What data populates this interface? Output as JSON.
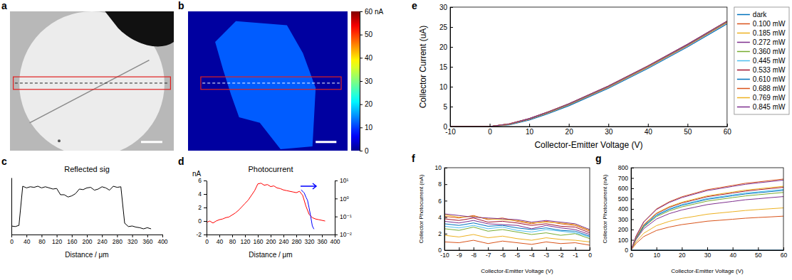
{
  "chart_data": [
    {
      "type": "image",
      "panel_label": "a"
    },
    {
      "type": "image",
      "panel_label": "b",
      "colorbar": {
        "lim": [
          0,
          60
        ],
        "ticks": [
          0,
          10,
          20,
          30,
          40,
          50,
          {
            "value": 60,
            "label": "60 nA"
          }
        ]
      },
      "background_value": 1,
      "flake_value": 12
    },
    {
      "type": "line",
      "panel_label": "c",
      "title": "Reflected sig",
      "x_label": "Distance / μm",
      "x": [
        0,
        10,
        20,
        30,
        40,
        50,
        60,
        70,
        80,
        90,
        100,
        110,
        120,
        130,
        140,
        150,
        160,
        170,
        180,
        190,
        200,
        210,
        220,
        230,
        240,
        250,
        260,
        270,
        280,
        290,
        300,
        310,
        320,
        330,
        340,
        350,
        360,
        370
      ],
      "series": [
        {
          "color": "#000000",
          "values": [
            0.15,
            0.14,
            0.16,
            0.85,
            0.82,
            0.84,
            0.83,
            0.85,
            0.82,
            0.84,
            0.82,
            0.8,
            0.81,
            0.7,
            0.7,
            0.66,
            0.68,
            0.72,
            0.8,
            0.79,
            0.82,
            0.83,
            0.78,
            0.8,
            0.84,
            0.82,
            0.78,
            0.85,
            0.83,
            0.84,
            0.2,
            0.14,
            0.15,
            0.13,
            0.12,
            0.1,
            0.12,
            0.1
          ]
        }
      ],
      "xlim": [
        0,
        400
      ],
      "xticks": [
        0,
        40,
        80,
        120,
        160,
        200,
        240,
        280,
        320,
        360,
        400
      ],
      "ylim": [
        0,
        1
      ],
      "tick_labels": "x"
    },
    {
      "type": "line",
      "panel_label": "d",
      "title": "Photocurrent",
      "x_label": "Distance / μm",
      "y_label": "nA",
      "x": [
        0,
        10,
        20,
        30,
        40,
        50,
        60,
        70,
        80,
        90,
        100,
        110,
        120,
        130,
        140,
        150,
        160,
        170,
        180,
        190,
        200,
        210,
        220,
        230,
        240,
        250,
        260,
        270,
        280,
        290,
        300,
        310,
        320,
        330,
        340,
        350,
        360,
        370
      ],
      "series": [
        {
          "color": "#ff0000",
          "values": [
            -0.2,
            0,
            -0.3,
            0,
            0.2,
            0.3,
            0.5,
            0.6,
            0.9,
            1.2,
            1.6,
            2.1,
            2.6,
            3.1,
            3.8,
            4.5,
            5.5,
            5.6,
            5.3,
            5.4,
            5.1,
            5.2,
            4.9,
            4.8,
            4.6,
            4.5,
            4.4,
            4.3,
            4.2,
            4.4,
            3.8,
            2.2,
            1.0,
            0.5,
            0.3,
            0.2,
            0.1,
            0
          ]
        },
        {
          "color": "#0000ff",
          "axis": "y2",
          "x": [
            295,
            300,
            305,
            310,
            315,
            320,
            325,
            330,
            335
          ],
          "values": [
            3,
            2.5,
            2,
            1.2,
            0.8,
            0.3,
            0.1,
            0.03,
            0.02
          ]
        }
      ],
      "xlim": [
        0,
        400
      ],
      "xticks": [
        0,
        40,
        80,
        120,
        160,
        200,
        240,
        280,
        320,
        360,
        400
      ],
      "ylim": [
        -2,
        6
      ],
      "yticks": [
        -2,
        0,
        2,
        4,
        6
      ],
      "y2lim": [
        0.01,
        10
      ],
      "y2ticks": [
        {
          "value": 0.01,
          "label": "10⁻²"
        },
        {
          "value": 0.1,
          "label": "10⁻¹"
        },
        {
          "value": 1,
          "label": "10⁰"
        },
        {
          "value": 10,
          "label": "10¹"
        }
      ],
      "log": "y2"
    },
    {
      "type": "line",
      "panel_label": "e",
      "x_label": "Collector-Emitter Voltage (V)",
      "y_label": "Collector Current (uA)",
      "x": [
        -10,
        0,
        5,
        10,
        15,
        20,
        30,
        40,
        50,
        60
      ],
      "series": [
        {
          "name": "dark",
          "color": "#0072bd",
          "values": [
            0,
            0,
            0.4,
            1.6,
            3.3,
            5.2,
            9.6,
            14.6,
            20,
            25.8
          ]
        },
        {
          "name": "0.100 mW",
          "color": "#d95319",
          "values": [
            0,
            0,
            0.53,
            1.79,
            3.52,
            5.45,
            9.88,
            14.9,
            20.32,
            26.13
          ]
        },
        {
          "name": "0.185 mW",
          "color": "#edb120",
          "values": [
            0,
            0,
            0.56,
            1.84,
            3.58,
            5.51,
            9.95,
            14.97,
            20.39,
            26.21
          ]
        },
        {
          "name": "0.272 mW",
          "color": "#7e2f8e",
          "values": [
            0,
            0,
            0.61,
            1.9,
            3.65,
            5.59,
            10.04,
            15.07,
            20.5,
            26.32
          ]
        },
        {
          "name": "0.360 mW",
          "color": "#77ac30",
          "values": [
            0,
            0,
            0.62,
            1.92,
            3.68,
            5.62,
            10.08,
            15.11,
            20.54,
            26.36
          ]
        },
        {
          "name": "0.445 mW",
          "color": "#4dbeee",
          "values": [
            0,
            0,
            0.64,
            1.94,
            3.7,
            5.64,
            10.1,
            15.14,
            20.57,
            26.39
          ]
        },
        {
          "name": "0.533 mW",
          "color": "#a2142f",
          "values": [
            0,
            0,
            0.64,
            1.95,
            3.71,
            5.66,
            10.12,
            15.16,
            20.59,
            26.41
          ]
        },
        {
          "name": "0.610 mW",
          "color": "#0072bd",
          "values": [
            0,
            0,
            0.63,
            1.94,
            3.69,
            5.64,
            10.09,
            15.13,
            20.56,
            26.38
          ]
        },
        {
          "name": "0.688 mW",
          "color": "#d95319",
          "values": [
            0,
            0,
            0.68,
            2,
            3.77,
            5.72,
            10.19,
            15.23,
            20.66,
            26.49
          ]
        },
        {
          "name": "0.769 mW",
          "color": "#edb120",
          "values": [
            0,
            0,
            0.65,
            1.96,
            3.72,
            5.67,
            10.13,
            15.16,
            20.6,
            26.42
          ]
        },
        {
          "name": "0.845 mW",
          "color": "#7e2f8e",
          "values": [
            0,
            0,
            0.67,
            1.99,
            3.76,
            5.71,
            10.18,
            15.22,
            20.65,
            26.48
          ]
        }
      ],
      "xlim": [
        -10,
        60
      ],
      "xticks": [
        -10,
        0,
        10,
        20,
        30,
        40,
        50,
        60
      ],
      "ylim": [
        0,
        30
      ],
      "yticks": [
        0,
        5,
        10,
        15,
        20,
        25,
        30
      ],
      "legend": "right"
    },
    {
      "type": "line",
      "panel_label": "f",
      "x_label": "Collector-Emitter Voltage (V)",
      "y_label": "Collector Photocurrent (nA)",
      "x": [
        -10,
        -9,
        -8,
        -7,
        -6,
        -5,
        -4,
        -3,
        -2,
        -1,
        0
      ],
      "series": [
        {
          "color": "#d95319",
          "values": [
            1.0,
            0.9,
            1.2,
            0.8,
            1.1,
            0.9,
            0.7,
            1.0,
            0.8,
            0.9,
            0.6
          ]
        },
        {
          "color": "#edb120",
          "values": [
            1.8,
            1.6,
            1.9,
            1.5,
            1.7,
            1.4,
            1.2,
            1.5,
            1.3,
            1.2,
            1.0
          ]
        },
        {
          "color": "#7e2f8e",
          "values": [
            3.5,
            3.3,
            3.6,
            3.2,
            3.1,
            3.0,
            2.6,
            3.0,
            2.7,
            2.5,
            1.9
          ]
        },
        {
          "color": "#77ac30",
          "values": [
            2.6,
            2.4,
            2.8,
            2.3,
            2.5,
            2.2,
            1.9,
            2.1,
            1.8,
            2.0,
            1.4
          ]
        },
        {
          "color": "#4dbeee",
          "values": [
            2.9,
            2.7,
            3.0,
            2.6,
            2.8,
            2.4,
            2.2,
            2.5,
            2.3,
            2.1,
            1.6
          ]
        },
        {
          "color": "#a2142f",
          "values": [
            3.8,
            3.6,
            3.9,
            3.4,
            3.5,
            3.3,
            3.0,
            3.2,
            2.9,
            2.8,
            2.1
          ]
        },
        {
          "color": "#0072bd",
          "values": [
            3.2,
            3.0,
            3.3,
            2.9,
            3.0,
            2.7,
            2.5,
            2.7,
            2.4,
            2.3,
            1.7
          ]
        },
        {
          "color": "#d95319",
          "values": [
            4.1,
            3.9,
            4.2,
            3.7,
            3.9,
            3.5,
            3.2,
            3.5,
            3.2,
            3.0,
            2.3
          ]
        },
        {
          "color": "#edb120",
          "values": [
            4.3,
            4.0,
            4.1,
            3.8,
            3.7,
            3.6,
            3.3,
            3.4,
            3.3,
            3.1,
            2.4
          ]
        },
        {
          "color": "#7e2f8e",
          "values": [
            4.4,
            4.2,
            4.0,
            3.9,
            3.8,
            3.7,
            3.4,
            3.6,
            3.4,
            3.2,
            2.5
          ]
        }
      ],
      "xlim": [
        -10,
        0
      ],
      "xticks": [
        -10,
        -9,
        -8,
        -7,
        -6,
        -5,
        -4,
        -3,
        -2,
        -1,
        0
      ],
      "ylim": [
        0,
        10
      ],
      "yticks": [
        0,
        2,
        4,
        6,
        8,
        10
      ]
    },
    {
      "type": "line",
      "panel_label": "g",
      "x_label": "Collector-Emitter Voltage (V)",
      "y_label": "Collector Photocurrent (nA)",
      "x": [
        0,
        2,
        5,
        10,
        15,
        20,
        25,
        30,
        35,
        40,
        45,
        50,
        55,
        60
      ],
      "series": [
        {
          "color": "#0072bd",
          "values": [
            0,
            0,
            0,
            0,
            0,
            0,
            0,
            0,
            0,
            0,
            0,
            0,
            0,
            0
          ]
        },
        {
          "color": "#d95319",
          "values": [
            0,
            66,
            132,
            191,
            224,
            248,
            264,
            281,
            290,
            300,
            310,
            317,
            323,
            330
          ]
        },
        {
          "color": "#edb120",
          "values": [
            0,
            82,
            164,
            238,
            279,
            308,
            328,
            349,
            361,
            373,
            385,
            394,
            402,
            410
          ]
        },
        {
          "color": "#7e2f8e",
          "values": [
            0,
            104,
            208,
            302,
            354,
            390,
            416,
            442,
            458,
            473,
            489,
            499,
            510,
            520
          ]
        },
        {
          "color": "#77ac30",
          "values": [
            0,
            112,
            224,
            325,
            381,
            420,
            448,
            476,
            493,
            510,
            526,
            538,
            549,
            560
          ]
        },
        {
          "color": "#4dbeee",
          "values": [
            0,
            118,
            236,
            342,
            401,
            443,
            472,
            502,
            519,
            537,
            555,
            566,
            578,
            590
          ]
        },
        {
          "color": "#a2142f",
          "values": [
            0,
            122,
            244,
            354,
            415,
            458,
            488,
            519,
            537,
            555,
            573,
            586,
            598,
            610
          ]
        },
        {
          "color": "#0072bd",
          "values": [
            0,
            116,
            232,
            336,
            394,
            435,
            464,
            493,
            510,
            528,
            545,
            557,
            568,
            580
          ]
        },
        {
          "color": "#d95319",
          "values": [
            0,
            138,
            276,
            400,
            469,
            518,
            552,
            587,
            607,
            628,
            649,
            662,
            676,
            690
          ]
        },
        {
          "color": "#edb120",
          "values": [
            0,
            124,
            248,
            360,
            422,
            465,
            496,
            527,
            546,
            564,
            583,
            595,
            608,
            620
          ]
        },
        {
          "color": "#7e2f8e",
          "values": [
            0,
            136,
            272,
            394,
            462,
            510,
            544,
            578,
            598,
            619,
            639,
            653,
            666,
            680
          ]
        }
      ],
      "xlim": [
        0,
        60
      ],
      "xticks": [
        0,
        10,
        20,
        30,
        40,
        50,
        60
      ],
      "ylim": [
        0,
        800
      ],
      "yticks": [
        0,
        100,
        200,
        300,
        400,
        500,
        600,
        700,
        800
      ]
    }
  ]
}
